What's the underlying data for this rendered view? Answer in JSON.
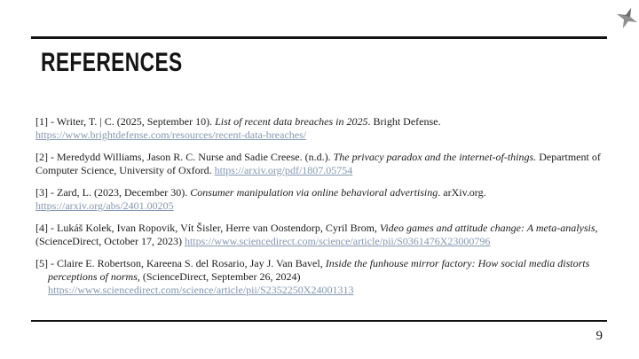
{
  "slide_title": {
    "text": "REFERENCES"
  },
  "page_number": "9",
  "icons": {
    "corner_icon": "four-pointed-star"
  },
  "colors": {
    "background": "#ffffff",
    "text": "#1b1b1b",
    "link": "#8497b1",
    "rule": "#111111",
    "icon_gray": "#8f8f8f"
  },
  "references": [
    {
      "hanging": false,
      "segments": [
        {
          "text": "[1] - Writer, T. | C. (2025, September 10). ",
          "style": "normal"
        },
        {
          "text": "List of recent data breaches in 2025",
          "style": "italic"
        },
        {
          "text": ". Bright Defense. ",
          "style": "normal"
        },
        {
          "text": "https://www.brightdefense.com/resources/recent-data-breaches/",
          "style": "link"
        }
      ]
    },
    {
      "hanging": false,
      "segments": [
        {
          "text": "[2] - Meredydd Williams, Jason R. C. Nurse and Sadie Creese. (n.d.). ",
          "style": "normal"
        },
        {
          "text": "The privacy paradox and the internet-of-things.",
          "style": "italic"
        },
        {
          "text": " Department of Computer Science, University of Oxford. ",
          "style": "normal"
        },
        {
          "text": "https://arxiv.org/pdf/1807.05754",
          "style": "link"
        }
      ]
    },
    {
      "hanging": false,
      "segments": [
        {
          "text": "[3] - Zard, L. (2023, December 30). ",
          "style": "normal"
        },
        {
          "text": "Consumer manipulation via online behavioral advertising",
          "style": "italic"
        },
        {
          "text": ". arXiv.org. ",
          "style": "normal"
        },
        {
          "text": "https://arxiv.org/abs/2401.00205",
          "style": "link"
        }
      ]
    },
    {
      "hanging": false,
      "segments": [
        {
          "text": "[4] - Lukáš Kolek, Ivan Ropovik, Vít Šisler, Herre van Oostendorp, Cyril Brom, ",
          "style": "normal"
        },
        {
          "text": "Video games and attitude change: A meta-analysis",
          "style": "italic"
        },
        {
          "text": ", (ScienceDirect, October 17, 2023) ",
          "style": "normal"
        },
        {
          "text": "https://www.sciencedirect.com/science/article/pii/S0361476X23000796",
          "style": "link"
        }
      ]
    },
    {
      "hanging": true,
      "segments": [
        {
          "text": "[5] - Claire E. Robertson, Kareena S. del Rosario, Jay J. Van Bavel, ",
          "style": "normal"
        },
        {
          "text": "Inside the funhouse mirror factory: How social media distorts perceptions of norms,",
          "style": "italic"
        },
        {
          "text": " (ScienceDirect, September 26, 2024) ",
          "style": "normal"
        },
        {
          "text": "https://www.sciencedirect.com/science/article/pii/S2352250X24001313",
          "style": "link"
        }
      ]
    }
  ]
}
